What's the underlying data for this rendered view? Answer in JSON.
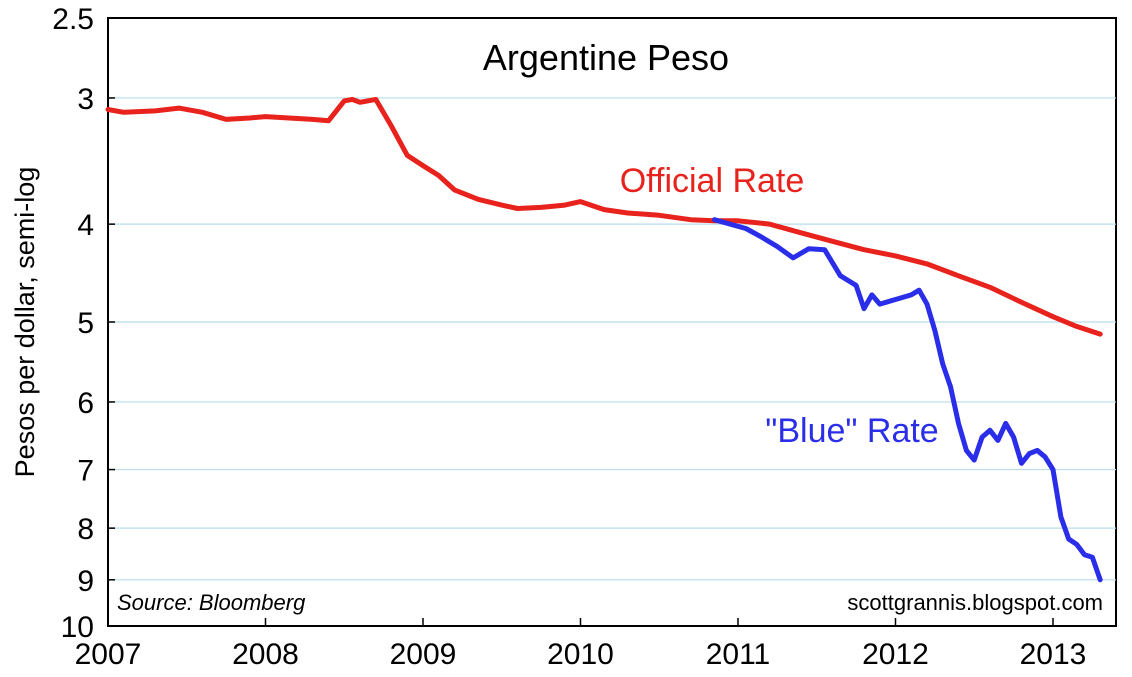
{
  "chart_data": {
    "type": "line",
    "title": "Argentine Peso",
    "ylabel": "Pesos per dollar, semi-log",
    "xlabel": "",
    "y_scale": "log",
    "y_inverted": true,
    "ylim": [
      2.5,
      10
    ],
    "xlim": [
      2007.0,
      2013.4
    ],
    "y_ticks": [
      "2.5",
      "3",
      "4",
      "5",
      "6",
      "7",
      "8",
      "9",
      "10"
    ],
    "x_ticks": [
      "2007",
      "2008",
      "2009",
      "2010",
      "2011",
      "2012",
      "2013"
    ],
    "grid": "horizontal",
    "source_note": "Source: Bloomberg",
    "credit": "scottgrannis.blogspot.com",
    "series": [
      {
        "name": "Official Rate",
        "color": "#e8221c",
        "x": [
          2007.0,
          2007.1,
          2007.3,
          2007.45,
          2007.6,
          2007.75,
          2007.9,
          2008.0,
          2008.15,
          2008.3,
          2008.4,
          2008.5,
          2008.55,
          2008.6,
          2008.7,
          2008.8,
          2008.9,
          2009.0,
          2009.1,
          2009.2,
          2009.35,
          2009.5,
          2009.6,
          2009.75,
          2009.9,
          2010.0,
          2010.15,
          2010.3,
          2010.5,
          2010.7,
          2010.85,
          2011.0,
          2011.2,
          2011.4,
          2011.6,
          2011.8,
          2012.0,
          2012.2,
          2012.4,
          2012.6,
          2012.8,
          2013.0,
          2013.15,
          2013.3
        ],
        "values": [
          3.08,
          3.1,
          3.09,
          3.07,
          3.1,
          3.15,
          3.14,
          3.13,
          3.14,
          3.15,
          3.16,
          3.02,
          3.01,
          3.03,
          3.01,
          3.2,
          3.42,
          3.5,
          3.58,
          3.7,
          3.78,
          3.83,
          3.86,
          3.85,
          3.83,
          3.8,
          3.87,
          3.9,
          3.92,
          3.96,
          3.97,
          3.97,
          4.0,
          4.08,
          4.16,
          4.24,
          4.3,
          4.38,
          4.5,
          4.62,
          4.78,
          4.94,
          5.05,
          5.14
        ]
      },
      {
        "name": "\"Blue\" Rate",
        "color": "#2a2ee8",
        "x": [
          2010.85,
          2010.95,
          2011.05,
          2011.15,
          2011.25,
          2011.35,
          2011.45,
          2011.55,
          2011.65,
          2011.75,
          2011.8,
          2011.85,
          2011.9,
          2012.0,
          2012.1,
          2012.15,
          2012.2,
          2012.25,
          2012.3,
          2012.35,
          2012.4,
          2012.45,
          2012.5,
          2012.55,
          2012.6,
          2012.65,
          2012.7,
          2012.75,
          2012.8,
          2012.85,
          2012.9,
          2012.95,
          2013.0,
          2013.05,
          2013.1,
          2013.15,
          2013.2,
          2013.25,
          2013.3
        ],
        "values": [
          3.96,
          4.0,
          4.04,
          4.12,
          4.21,
          4.32,
          4.23,
          4.24,
          4.5,
          4.6,
          4.85,
          4.7,
          4.8,
          4.75,
          4.7,
          4.65,
          4.8,
          5.1,
          5.5,
          5.8,
          6.3,
          6.7,
          6.85,
          6.5,
          6.4,
          6.55,
          6.3,
          6.5,
          6.9,
          6.75,
          6.7,
          6.8,
          7.0,
          7.8,
          8.2,
          8.3,
          8.5,
          8.55,
          9.0
        ]
      }
    ]
  }
}
